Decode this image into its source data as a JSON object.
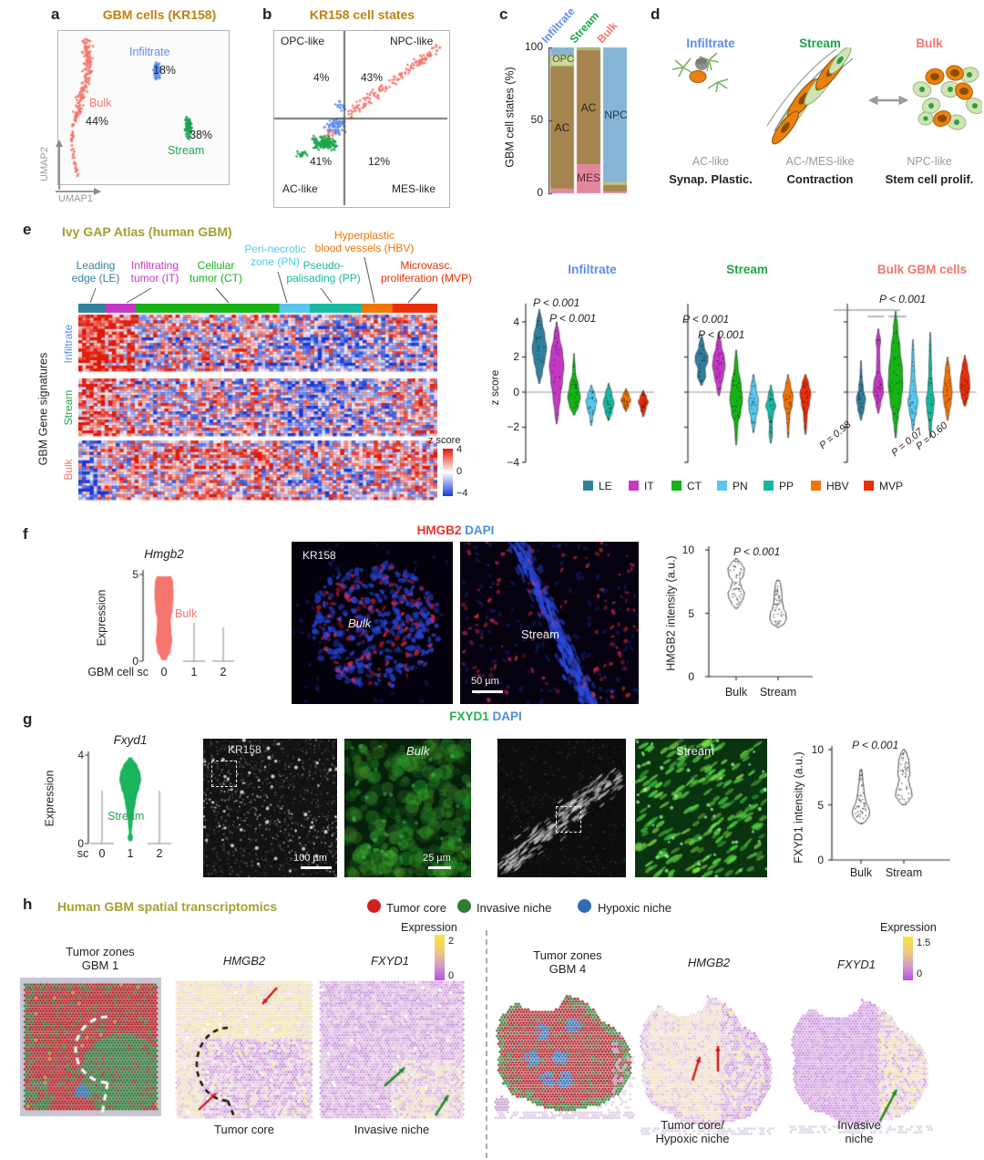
{
  "colors": {
    "bulk": "#f4766e",
    "infiltrate": "#5b8cf0",
    "stream": "#1ea44c",
    "gold": "#c0810c",
    "olive": "#a4a030",
    "le": "#31809e",
    "it": "#c438c4",
    "ct": "#16b216",
    "pn": "#56c7ed",
    "pp": "#16b9a0",
    "hbv": "#f27405",
    "mvp": "#ea2e07",
    "ac_bar": "#a5854d",
    "mes_bar": "#e2879c",
    "opc_bar": "#ccd89e",
    "npc_bar": "#85b4d4",
    "tumor_core": "#d42020",
    "invasive_niche": "#2e7d32",
    "hypoxic_niche": "#2e6db4",
    "heat_red": "#e01808",
    "heat_blue": "#1238d8"
  },
  "panels": {
    "a": {
      "letter": "a",
      "title": "GBM cells (KR158)",
      "infiltrate": "Infiltrate",
      "infiltrate_pct": "18%",
      "bulk": "Bulk",
      "bulk_pct": "44%",
      "stream": "Stream",
      "stream_pct": "38%",
      "xaxis": "UMAP1",
      "yaxis": "UMAP2"
    },
    "b": {
      "letter": "b",
      "title": "KR158 cell states",
      "opc": "OPC-like",
      "npc": "NPC-like",
      "ac": "AC-like",
      "mes": "MES-like",
      "opc_pct": "4%",
      "npc_pct": "43%",
      "ac_pct": "41%",
      "mes_pct": "12%"
    },
    "c": {
      "letter": "c",
      "ylabel": "GBM cell states (%)",
      "t100": "100",
      "t50": "50",
      "t0": "0",
      "col1": "Infiltrate",
      "col2": "Stream",
      "col3": "Bulk",
      "seg_opc": "OPC",
      "seg_ac1": "AC",
      "seg_ac2": "AC",
      "seg_mes": "MES",
      "seg_npc": "NPC"
    },
    "d": {
      "letter": "d",
      "g1": "Infiltrate",
      "g2": "Stream",
      "g3": "Bulk",
      "t1": "AC-like",
      "t2": "AC-/MES-like",
      "t3": "NPC-like",
      "f1": "Synap. Plastic.",
      "f2": "Contraction",
      "f3": "Stem cell prolif."
    },
    "e": {
      "letter": "e",
      "title": "Ivy GAP Atlas (human GBM)",
      "zones": [
        [
          "Leading",
          "edge (LE)"
        ],
        [
          "Infiltrating",
          "tumor (IT)"
        ],
        [
          "Cellular",
          "tumor (CT)"
        ],
        [
          "Peri-necrotic",
          "zone (PN)"
        ],
        [
          "Pseudo-",
          "palisading (PP)"
        ],
        [
          "Hyperplastic",
          "blood vessels (HBV)"
        ],
        [
          "Microvasc.",
          "proliferation (MVP)"
        ]
      ],
      "ylabel": "GBM Gene signatures",
      "rows": [
        "Infiltrate",
        "Stream",
        "Bulk"
      ],
      "cbar_title": "z score",
      "cbar_max": "4",
      "cbar_mid": "0",
      "cbar_min": "−4",
      "vy_label": "z score",
      "vy_ticks": [
        "4",
        "2",
        "0",
        "−2",
        "−4"
      ],
      "v_titles": [
        "Infiltrate",
        "Stream",
        "Bulk GBM cells"
      ],
      "p_inf": [
        "P < 0.001",
        "P < 0.001"
      ],
      "p_str": [
        "P < 0.001",
        "P < 0.001"
      ],
      "p_bulk_top": "P < 0.001",
      "p_bulk": [
        "P = 0.98",
        "P = 0.07",
        "P = 0.60"
      ],
      "legend": [
        "LE",
        "IT",
        "CT",
        "PN",
        "PP",
        "HBV",
        "MVP"
      ]
    },
    "f": {
      "letter": "f",
      "gene": "Hmgb2",
      "expr": "Expression",
      "e5": "5",
      "e0": "0",
      "xaxis": "GBM cell sc",
      "c0": "0",
      "c1": "1",
      "c2": "2",
      "group": "Bulk",
      "stain": "HMGB2",
      "stain2": "DAPI",
      "img1_tag": "KR158",
      "img1_label": "Bulk",
      "img2_label": "Stream",
      "scale": "50 µm",
      "int_ylabel": "HMGB2 intensity (a.u.)",
      "i10": "10",
      "i5": "5",
      "i0": "0",
      "cat1": "Bulk",
      "cat2": "Stream",
      "pval": "P < 0.001"
    },
    "g": {
      "letter": "g",
      "gene": "Fxyd1",
      "expr": "Expression",
      "e4": "4",
      "e0": "0",
      "xsc": "sc",
      "c0": "0",
      "c1": "1",
      "c2": "2",
      "group": "Stream",
      "stain": "FXYD1",
      "stain2": "DAPI",
      "img1_tag": "KR158",
      "img2_label": "Bulk",
      "img4_label": "Stream",
      "scale1": "100 µm",
      "scale2": "25 µm",
      "int_ylabel": "FXYD1 intensity (a.u.)",
      "i10": "10",
      "i5": "5",
      "i0": "0",
      "cat1": "Bulk",
      "cat2": "Stream",
      "pval": "P < 0.001"
    },
    "h": {
      "letter": "h",
      "title": "Human GBM spatial transcriptomics",
      "legend": [
        {
          "label": "Tumor core",
          "color": "#d42020"
        },
        {
          "label": "Invasive niche",
          "color": "#2e7d32"
        },
        {
          "label": "Hypoxic niche",
          "color": "#2e6db4"
        }
      ],
      "expr_label": "Expression",
      "l_max": "2",
      "l_min": "0",
      "r_max": "1.5",
      "r_min": "0",
      "l_title": [
        "Tumor zones",
        "GBM 1"
      ],
      "r_title": [
        "Tumor zones",
        "GBM 4"
      ],
      "gene1": "HMGB2",
      "gene2": "FXYD1",
      "l_cap1": "Tumor core",
      "l_cap2": "Invasive niche",
      "r_cap1": [
        "Tumor core/",
        "Hypoxic niche"
      ],
      "r_cap2": [
        "Invasive",
        "niche"
      ]
    }
  },
  "chart_data": [
    {
      "id": "a_umap",
      "type": "scatter",
      "title": "GBM cells (KR158)",
      "axes": [
        "UMAP1",
        "UMAP2"
      ],
      "clusters": [
        {
          "name": "Bulk",
          "pct": 44
        },
        {
          "name": "Infiltrate",
          "pct": 18
        },
        {
          "name": "Stream",
          "pct": 38
        }
      ]
    },
    {
      "id": "b_states",
      "type": "scatter",
      "title": "KR158 cell states",
      "quadrants": {
        "OPC-like": 4,
        "NPC-like": 43,
        "AC-like": 41,
        "MES-like": 12
      }
    },
    {
      "id": "c_states_bar",
      "type": "bar",
      "stacked": true,
      "ylabel": "GBM cell states (%)",
      "ylim": [
        0,
        100
      ],
      "categories": [
        "Infiltrate",
        "Stream",
        "Bulk"
      ],
      "series": [
        {
          "name": "MES",
          "values": [
            3,
            20,
            1
          ]
        },
        {
          "name": "AC",
          "values": [
            84,
            78.5,
            5
          ]
        },
        {
          "name": "OPC",
          "values": [
            8,
            1.5,
            2
          ]
        },
        {
          "name": "NPC",
          "values": [
            5,
            0,
            92
          ]
        }
      ]
    },
    {
      "id": "e_violins",
      "type": "violin",
      "ylabel": "z score",
      "ylim": [
        -4,
        4
      ],
      "groups": [
        "LE",
        "IT",
        "CT",
        "PN",
        "PP",
        "HBV",
        "MVP"
      ],
      "panels": [
        {
          "name": "Infiltrate",
          "medians": [
            2.5,
            1.5,
            -0.3,
            -0.5,
            -0.6,
            -0.45,
            -0.55
          ],
          "p": [
            "P < 0.001",
            "P < 0.001"
          ]
        },
        {
          "name": "Stream",
          "medians": [
            1.8,
            1.5,
            -0.4,
            -0.7,
            -0.8,
            -0.2,
            -0.1
          ],
          "p": [
            "P < 0.001",
            "P < 0.001"
          ]
        },
        {
          "name": "Bulk GBM cells",
          "medians": [
            -0.4,
            0.3,
            0.5,
            -0.5,
            -0.6,
            0.05,
            0.3
          ],
          "p": [
            "P < 0.001",
            "P = 0.98",
            "P = 0.07",
            "P = 0.60"
          ]
        }
      ]
    },
    {
      "id": "f_expression",
      "type": "violin",
      "gene": "Hmgb2",
      "ylabel": "Expression",
      "ylim": [
        0,
        5
      ],
      "categories": [
        "0",
        "1",
        "2"
      ],
      "expressed_category": "0",
      "expressed_group": "Bulk"
    },
    {
      "id": "f_intensity",
      "type": "violin",
      "ylabel": "HMGB2 intensity (a.u.)",
      "ylim": [
        0,
        10
      ],
      "categories": [
        "Bulk",
        "Stream"
      ],
      "medians": [
        7.2,
        4.9
      ],
      "p": "P < 0.001"
    },
    {
      "id": "g_expression",
      "type": "violin",
      "gene": "Fxyd1",
      "ylabel": "Expression",
      "ylim": [
        0,
        4
      ],
      "categories": [
        "0",
        "1",
        "2"
      ],
      "expressed_category": "1",
      "expressed_group": "Stream"
    },
    {
      "id": "g_intensity",
      "type": "violin",
      "ylabel": "FXYD1 intensity (a.u.)",
      "ylim": [
        0,
        10
      ],
      "categories": [
        "Bulk",
        "Stream"
      ],
      "medians": [
        4.5,
        6.2
      ],
      "p": "P < 0.001"
    },
    {
      "id": "h_spatial",
      "type": "heatmap",
      "samples": [
        "GBM 1",
        "GBM 4"
      ],
      "genes": [
        "HMGB2",
        "FXYD1"
      ],
      "zones": [
        "Tumor core",
        "Invasive niche",
        "Hypoxic niche"
      ],
      "expression_range_gbm1": [
        0,
        2
      ],
      "expression_range_gbm4": [
        0,
        1.5
      ]
    }
  ]
}
